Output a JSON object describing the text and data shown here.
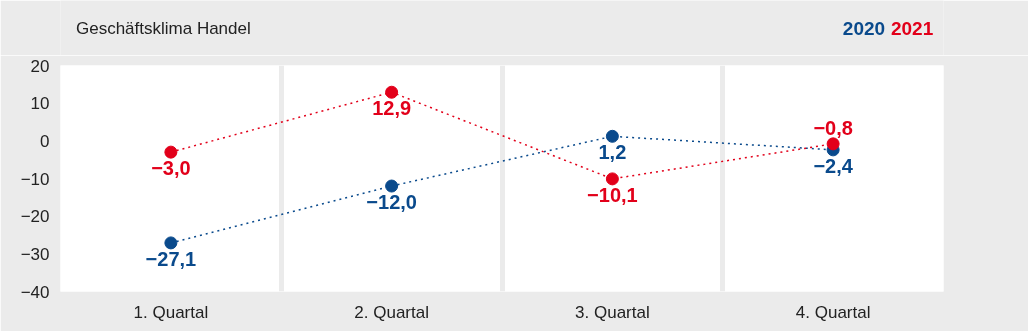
{
  "chart_data": {
    "type": "line",
    "title": "Geschäftsklima Handel",
    "categories": [
      "1. Quartal",
      "2. Quartal",
      "3. Quartal",
      "4. Quartal"
    ],
    "series": [
      {
        "name": "2020",
        "color": "#0a4a8c",
        "values": [
          -27.1,
          -12.0,
          1.2,
          -2.4
        ],
        "value_labels": [
          "−27,1",
          "−12,0",
          "1,2",
          "−2,4"
        ]
      },
      {
        "name": "2021",
        "color": "#e2001a",
        "values": [
          -3.0,
          12.9,
          -10.1,
          -0.8
        ],
        "value_labels": [
          "−3,0",
          "12,9",
          "−10,1",
          "−0,8"
        ]
      }
    ],
    "ylim": [
      -40,
      20
    ],
    "yticks": [
      {
        "value": -40,
        "label": "−40"
      },
      {
        "value": -30,
        "label": "−30"
      },
      {
        "value": -20,
        "label": "−20"
      },
      {
        "value": -10,
        "label": "−10"
      },
      0,
      10,
      20
    ],
    "grid": "x",
    "marker": "circle",
    "line_style": "dotted"
  }
}
